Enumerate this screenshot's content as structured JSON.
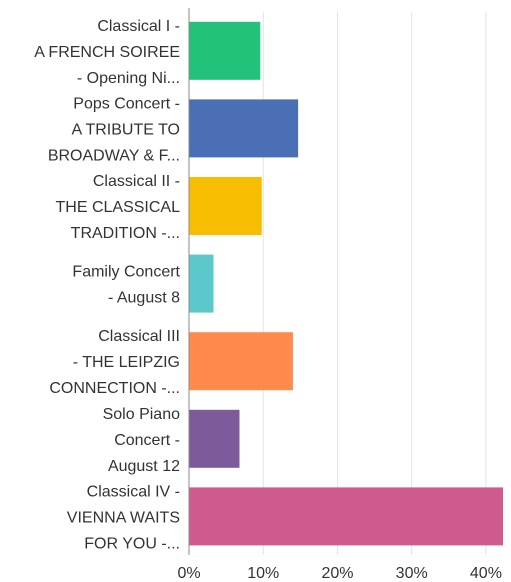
{
  "chart_data": {
    "type": "bar",
    "orientation": "horizontal",
    "categories": [
      [
        "Classical I -",
        "A FRENCH SOIREE",
        "- Opening Ni..."
      ],
      [
        "Pops Concert -",
        "A TRIBUTE TO",
        "BROADWAY & F..."
      ],
      [
        "Classical II -",
        "THE CLASSICAL",
        "TRADITION -..."
      ],
      [
        "Family Concert",
        "- August 8"
      ],
      [
        "Classical III",
        "- THE LEIPZIG",
        "CONNECTION -..."
      ],
      [
        "Solo Piano",
        "Concert -",
        "August 12"
      ],
      [
        "Classical IV -",
        "VIENNA WAITS",
        "FOR YOU -..."
      ]
    ],
    "values": [
      9.6,
      14.7,
      9.8,
      3.3,
      14.0,
      6.8,
      42.3
    ],
    "colors": [
      "#22c27a",
      "#4a6fb5",
      "#f7bd00",
      "#5cc8cc",
      "#ff8a4c",
      "#7e5a9b",
      "#cf5a8c"
    ],
    "xlim": [
      0,
      42.3
    ],
    "xticks": [
      0,
      10,
      20,
      30,
      40
    ],
    "xtick_labels": [
      "0%",
      "10%",
      "20%",
      "30%",
      "40%"
    ],
    "grid": true,
    "legend": "none"
  }
}
